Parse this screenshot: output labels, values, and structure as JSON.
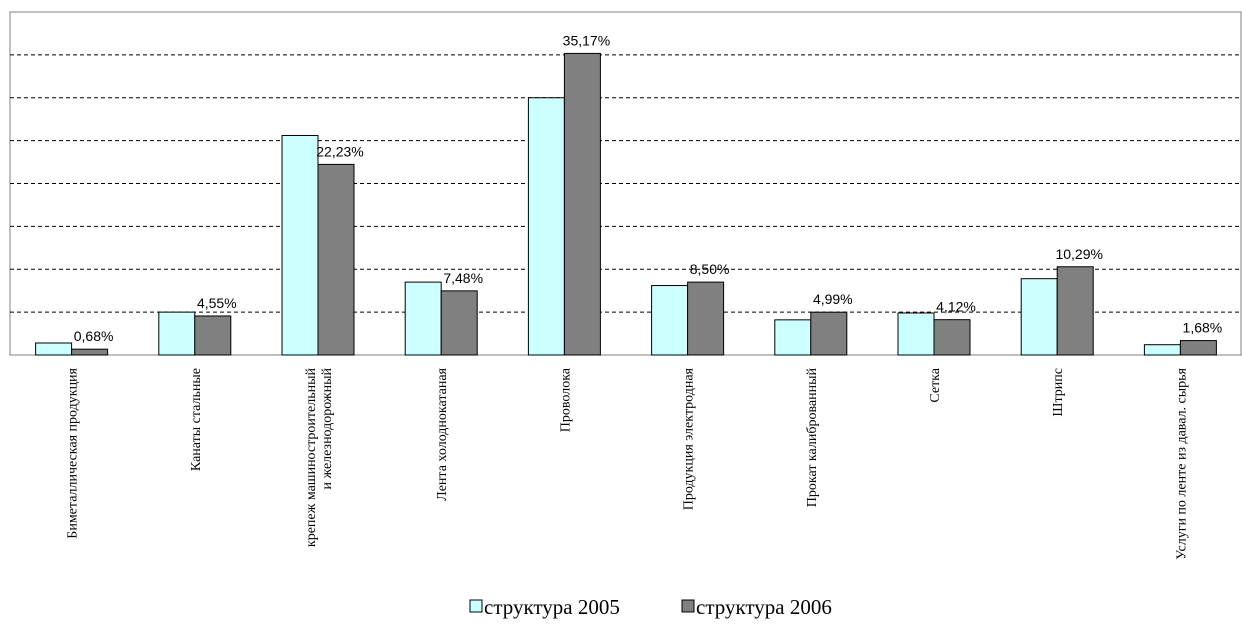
{
  "chart_data": {
    "type": "bar",
    "categories": [
      "Биметаллическая продукция",
      "Канаты стальные",
      "крепеж машиностроительный\nи железнодорожный",
      "Лента холоднокатаная",
      "Проволока",
      "Продукция электродная",
      "Прокат калиброванный",
      "Сетка",
      "Штрипс",
      "Услуги по ленте из давал. сырья"
    ],
    "series": [
      {
        "name": "структура 2005",
        "color": "#ccffff",
        "values": [
          1.4,
          5.0,
          25.6,
          8.5,
          30.0,
          8.1,
          4.1,
          4.9,
          8.9,
          1.2
        ]
      },
      {
        "name": "структура 2006",
        "color": "#808080",
        "values": [
          0.68,
          4.55,
          22.23,
          7.48,
          35.17,
          8.5,
          4.99,
          4.12,
          10.29,
          1.68
        ],
        "value_labels": [
          "0,68%",
          "4,55%",
          "22,23%",
          "7,48%",
          "35,17%",
          "8,50%",
          "4,99%",
          "4,12%",
          "10,29%",
          "1,68%"
        ]
      }
    ],
    "ylim": [
      0,
      40
    ],
    "yticks": [
      5,
      10,
      15,
      20,
      25,
      30,
      35
    ],
    "grid": true,
    "legend": "bottom"
  }
}
